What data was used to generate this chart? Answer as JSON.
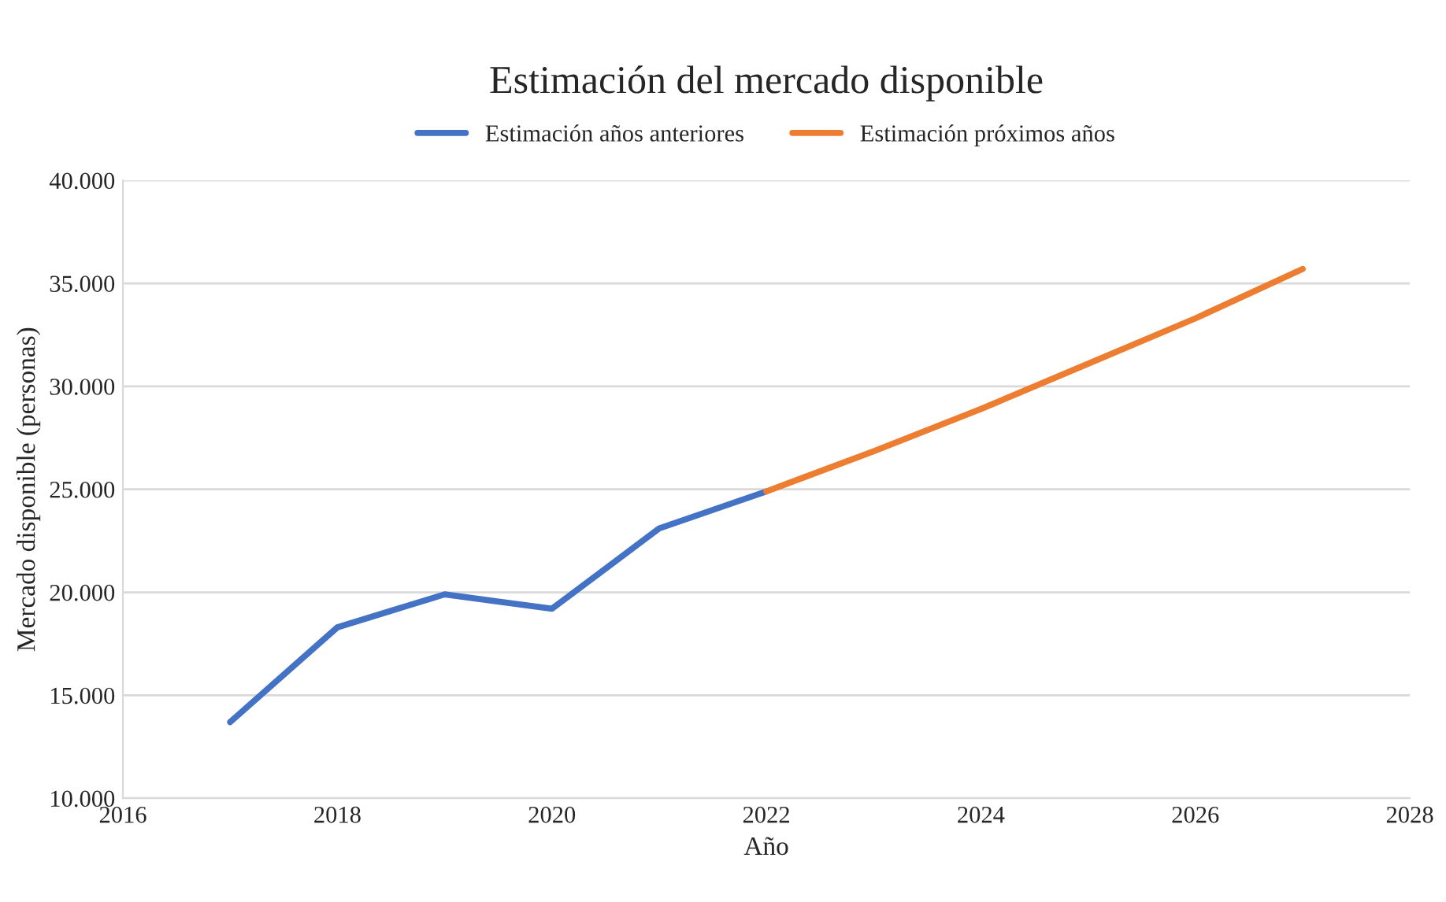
{
  "chart_data": {
    "type": "line",
    "title": "Estimación del mercado disponible",
    "xlabel": "Año",
    "ylabel": "Mercado disponible (personas)",
    "series": [
      {
        "name": "Estimación años anteriores",
        "color": "#4472c4",
        "x": [
          2017,
          2018,
          2019,
          2020,
          2021,
          2022
        ],
        "values": [
          13700,
          18300,
          19900,
          19200,
          23100,
          24900
        ]
      },
      {
        "name": "Estimación próximos años",
        "color": "#ed7d31",
        "x": [
          2022,
          2023,
          2024,
          2025,
          2026,
          2027
        ],
        "values": [
          24900,
          26850,
          28900,
          31100,
          33300,
          35700
        ]
      }
    ],
    "xlim": [
      2016,
      2028
    ],
    "xticks": [
      2016,
      2018,
      2020,
      2022,
      2024,
      2026,
      2028
    ],
    "ylim": [
      10000,
      40000
    ],
    "yticks": [
      {
        "value": 10000,
        "label": "10.000"
      },
      {
        "value": 15000,
        "label": "15.000"
      },
      {
        "value": 20000,
        "label": "20.000"
      },
      {
        "value": 25000,
        "label": "25.000"
      },
      {
        "value": 30000,
        "label": "30.000"
      },
      {
        "value": 35000,
        "label": "35.000"
      },
      {
        "value": 40000,
        "label": "40.000"
      }
    ],
    "grid": "y",
    "legend": "top",
    "marker": "none",
    "line_style": "solid"
  }
}
